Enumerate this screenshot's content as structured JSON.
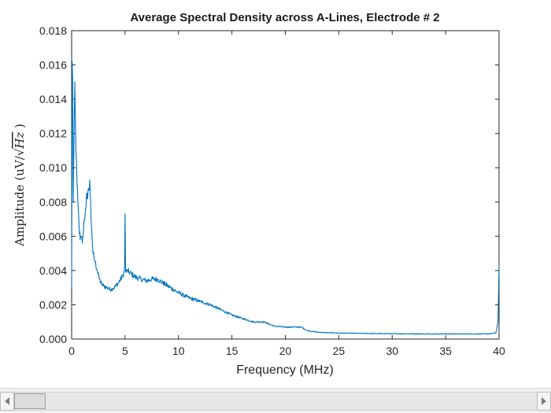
{
  "chart_data": {
    "type": "line",
    "title": "Average Spectral Density across A-Lines, Electrode # 2",
    "xlabel": "Frequency (MHz)",
    "ylabel_prefix": "Amplitude (",
    "ylabel_unit": "uV/",
    "ylabel_sqrt": "√",
    "ylabel_radicand": "Hz",
    "ylabel_suffix": " )",
    "xlim": [
      0,
      40
    ],
    "ylim": [
      0,
      0.018
    ],
    "xticks": [
      "0",
      "5",
      "10",
      "15",
      "20",
      "25",
      "30",
      "35",
      "40"
    ],
    "yticks": [
      "0.000",
      "0.002",
      "0.004",
      "0.006",
      "0.008",
      "0.010",
      "0.012",
      "0.014",
      "0.016",
      "0.018"
    ],
    "grid": false,
    "line_color": "#0072BD",
    "series": [
      {
        "x": [
          0,
          0.05,
          0.1,
          0.15,
          0.2,
          0.3,
          0.4,
          0.5,
          0.6,
          0.7,
          0.8,
          0.9,
          1.0,
          1.1,
          1.2,
          1.3,
          1.4,
          1.5,
          1.6,
          1.7,
          1.8,
          1.9,
          2.0,
          2.2,
          2.4,
          2.6,
          2.8,
          3.0,
          3.3,
          3.6,
          4.0,
          4.4,
          4.8,
          4.95,
          5.0,
          5.05,
          5.2,
          5.6,
          6.0,
          6.5,
          7.0,
          7.5,
          8.0,
          8.5,
          9.0,
          9.5,
          10.0,
          11.0,
          12.0,
          13.0,
          14.0,
          15.0,
          16.0,
          17.0,
          18.0,
          19.0,
          20.0,
          21.0,
          21.5,
          22.0,
          23.0,
          24.0,
          25.0,
          27.0,
          30.0,
          33.0,
          36.0,
          39.0,
          39.7,
          39.9,
          40.0
        ],
        "y": [
          0.003,
          0.0162,
          0.015,
          0.008,
          0.0105,
          0.015,
          0.011,
          0.0092,
          0.0078,
          0.0066,
          0.0058,
          0.006,
          0.0056,
          0.0063,
          0.007,
          0.0075,
          0.0085,
          0.0082,
          0.0087,
          0.0093,
          0.0073,
          0.0061,
          0.005,
          0.0045,
          0.004,
          0.0035,
          0.0032,
          0.0031,
          0.003,
          0.0029,
          0.003,
          0.0033,
          0.0037,
          0.004,
          0.0073,
          0.0039,
          0.004,
          0.0038,
          0.0036,
          0.0035,
          0.0034,
          0.0035,
          0.0035,
          0.0033,
          0.0031,
          0.0029,
          0.0027,
          0.0024,
          0.0022,
          0.002,
          0.0017,
          0.0014,
          0.0012,
          0.001,
          0.001,
          0.00075,
          0.0007,
          0.0007,
          0.0007,
          0.0005,
          0.0004,
          0.00037,
          0.00035,
          0.00033,
          0.00031,
          0.0003,
          0.0003,
          0.0003,
          0.00035,
          0.001,
          0.0043
        ]
      }
    ]
  }
}
